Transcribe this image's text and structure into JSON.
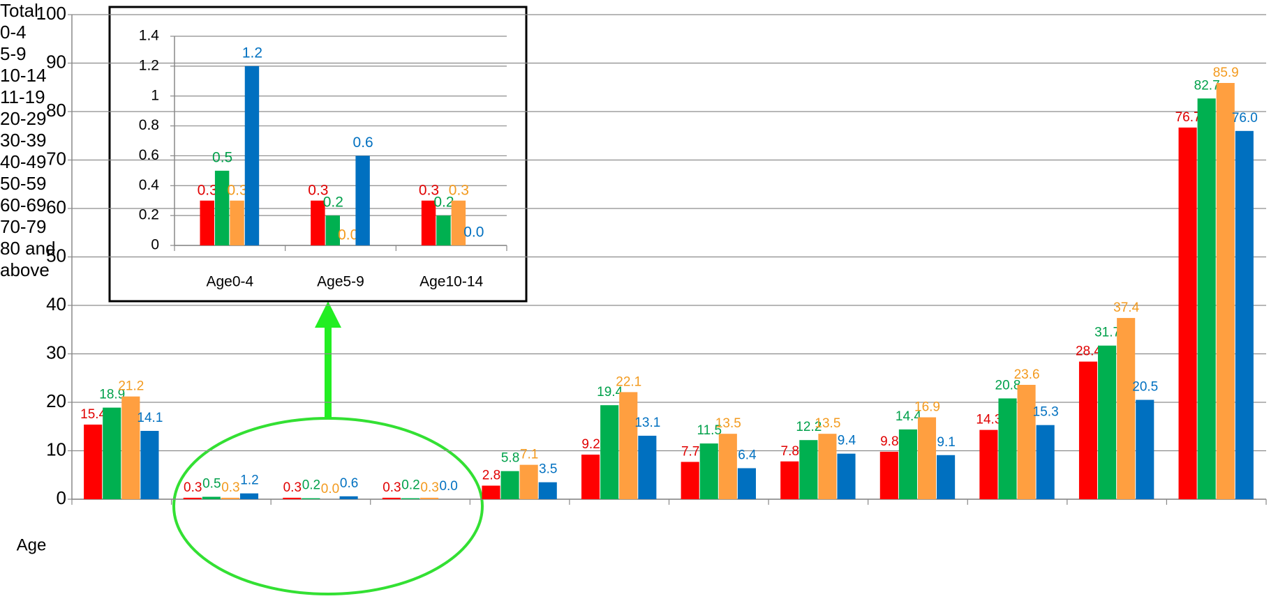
{
  "chart_data": [
    {
      "type": "bar",
      "x_label": "Age",
      "categories": [
        "Total",
        "0-4",
        "5-9",
        "10-14",
        "11-19",
        "20-29",
        "30-39",
        "40-49",
        "50-59",
        "60-69",
        "70-79",
        "80 and above"
      ],
      "ylim": [
        0,
        100
      ],
      "yticks": [
        0,
        10,
        20,
        30,
        40,
        50,
        60,
        70,
        80,
        90,
        100
      ],
      "grid": true,
      "series": [
        {
          "color": "#ff0000",
          "label_color": "#e00000",
          "values": [
            15.4,
            0.3,
            0.3,
            0.3,
            2.8,
            9.2,
            7.7,
            7.8,
            9.8,
            14.3,
            28.4,
            76.7
          ],
          "value_labels": [
            "15.4",
            "0.3",
            "0.3",
            "0.3",
            "2.8",
            "9.2",
            "7.7",
            "7.8",
            "9.8",
            "14.3",
            "28.4",
            "76.7"
          ]
        },
        {
          "color": "#00b050",
          "label_color": "#00a04a",
          "values": [
            18.9,
            0.5,
            0.2,
            0.2,
            5.8,
            19.4,
            11.5,
            12.2,
            14.4,
            20.8,
            31.7,
            82.7
          ],
          "value_labels": [
            "18.9",
            "0.5",
            "0.2",
            "0.2",
            "5.8",
            "19.4",
            "11.5",
            "12.2",
            "14.4",
            "20.8",
            "31.7",
            "82.7"
          ]
        },
        {
          "color": "#ff9f40",
          "label_color": "#f39a1e",
          "values": [
            21.2,
            0.3,
            0.0,
            0.3,
            7.1,
            22.1,
            13.5,
            13.5,
            16.9,
            23.6,
            37.4,
            85.9
          ],
          "value_labels": [
            "21.2",
            "0.3",
            "0.0",
            "0.3",
            "7.1",
            "22.1",
            "13.5",
            "13.5",
            "16.9",
            "23.6",
            "37.4",
            "85.9"
          ]
        },
        {
          "color": "#0070c0",
          "label_color": "#0070c0",
          "values": [
            14.1,
            1.2,
            0.6,
            0.0,
            3.5,
            13.1,
            6.4,
            9.4,
            9.1,
            15.3,
            20.5,
            76.0
          ],
          "value_labels": [
            "14.1",
            "1.2",
            "0.6",
            "0.0",
            "3.5",
            "13.1",
            "6.4",
            "9.4",
            "9.1",
            "15.3",
            "20.5",
            "76.0"
          ]
        }
      ]
    },
    {
      "type": "bar",
      "categories": [
        "Age0-4",
        "Age5-9",
        "Age10-14"
      ],
      "ylim": [
        0,
        1.4
      ],
      "yticks": [
        0,
        0.2,
        0.4,
        0.6,
        0.8,
        1,
        1.2,
        1.4
      ],
      "grid": true,
      "series": [
        {
          "color": "#ff0000",
          "label_color": "#e00000",
          "values": [
            0.3,
            0.3,
            0.3
          ],
          "value_labels": [
            "0.3",
            "0.3",
            "0.3"
          ]
        },
        {
          "color": "#00b050",
          "label_color": "#00a04a",
          "values": [
            0.5,
            0.2,
            0.2
          ],
          "value_labels": [
            "0.5",
            "0.2",
            "0.2"
          ]
        },
        {
          "color": "#ff9f40",
          "label_color": "#f39a1e",
          "values": [
            0.3,
            0.0,
            0.3
          ],
          "value_labels": [
            "0.3",
            "0.0",
            "0.3"
          ]
        },
        {
          "color": "#0070c0",
          "label_color": "#0070c0",
          "values": [
            1.2,
            0.6,
            0.0
          ],
          "value_labels": [
            "1.2",
            "0.6",
            "0.0"
          ]
        }
      ]
    }
  ]
}
